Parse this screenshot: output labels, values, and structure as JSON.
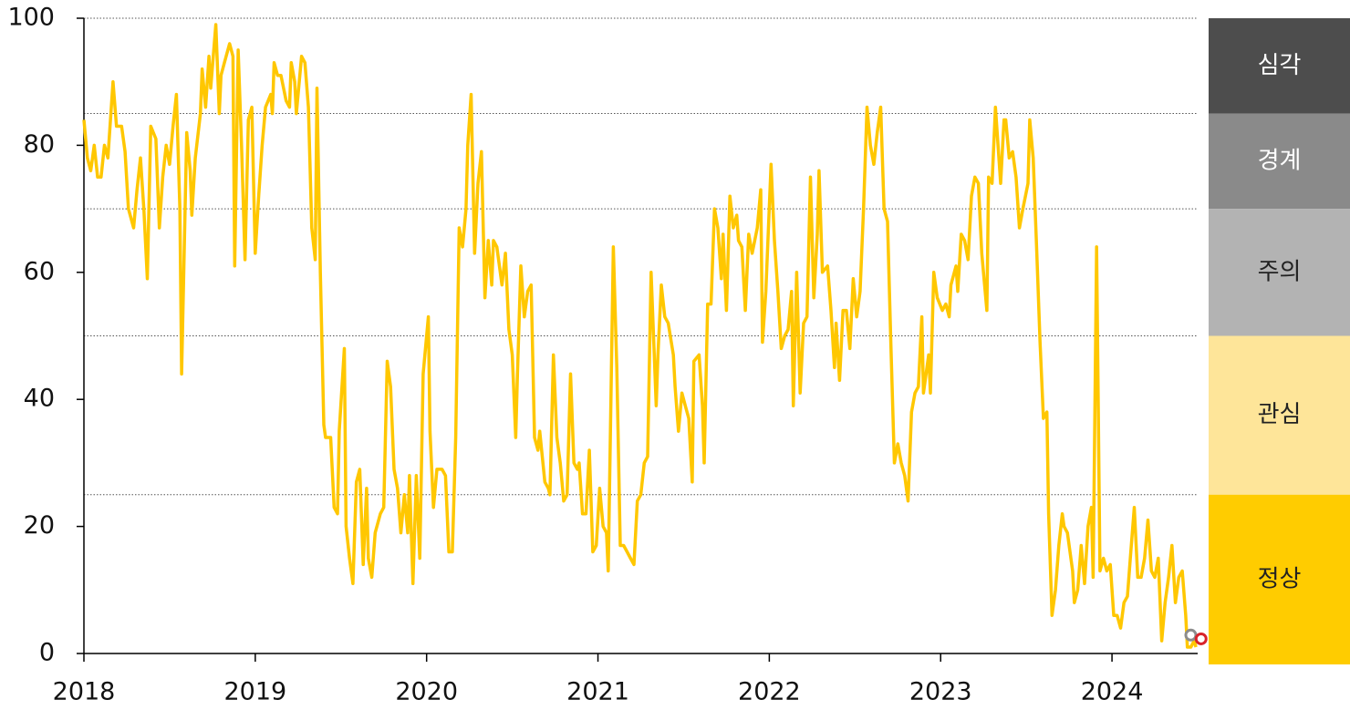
{
  "chart_data": {
    "type": "line",
    "color": "#ffc700",
    "xlim": [
      2018,
      2024.5
    ],
    "xticks": [
      2018,
      2019,
      2020,
      2021,
      2022,
      2023,
      2024
    ],
    "ylim": [
      0,
      100
    ],
    "yticks": [
      0,
      20,
      40,
      60,
      80,
      100
    ],
    "x": [
      2018,
      2018.02,
      2018.04,
      2018.06,
      2018.08,
      2018.1,
      2018.12,
      2018.14,
      2018.17,
      2018.19,
      2018.22,
      2018.24,
      2018.26,
      2018.29,
      2018.31,
      2018.33,
      2018.35,
      2018.37,
      2018.39,
      2018.42,
      2018.44,
      2018.46,
      2018.48,
      2018.5,
      2018.52,
      2018.54,
      2018.56,
      2018.57,
      2018.6,
      2018.62,
      2018.63,
      2018.65,
      2018.68,
      2018.69,
      2018.71,
      2018.73,
      2018.74,
      2018.77,
      2018.79,
      2018.8,
      2018.82,
      2018.85,
      2018.87,
      2018.88,
      2018.9,
      2018.92,
      2018.94,
      2018.96,
      2018.98,
      2019,
      2019.02,
      2019.04,
      2019.06,
      2019.09,
      2019.1,
      2019.11,
      2019.13,
      2019.15,
      2019.18,
      2019.2,
      2019.21,
      2019.23,
      2019.24,
      2019.27,
      2019.29,
      2019.31,
      2019.33,
      2019.35,
      2019.36,
      2019.38,
      2019.4,
      2019.41,
      2019.44,
      2019.46,
      2019.48,
      2019.49,
      2019.52,
      2019.53,
      2019.55,
      2019.57,
      2019.59,
      2019.61,
      2019.63,
      2019.65,
      2019.66,
      2019.68,
      2019.7,
      2019.73,
      2019.75,
      2019.77,
      2019.79,
      2019.81,
      2019.83,
      2019.85,
      2019.87,
      2019.89,
      2019.9,
      2019.92,
      2019.94,
      2019.96,
      2019.98,
      2020.01,
      2020.02,
      2020.04,
      2020.06,
      2020.09,
      2020.11,
      2020.13,
      2020.15,
      2020.17,
      2020.19,
      2020.21,
      2020.23,
      2020.24,
      2020.26,
      2020.28,
      2020.3,
      2020.32,
      2020.34,
      2020.36,
      2020.38,
      2020.39,
      2020.41,
      2020.44,
      2020.46,
      2020.48,
      2020.5,
      2020.52,
      2020.53,
      2020.55,
      2020.57,
      2020.59,
      2020.61,
      2020.63,
      2020.65,
      2020.66,
      2020.69,
      2020.71,
      2020.72,
      2020.74,
      2020.76,
      2020.78,
      2020.8,
      2020.82,
      2020.84,
      2020.86,
      2020.88,
      2020.89,
      2020.91,
      2020.93,
      2020.95,
      2020.97,
      2020.99,
      2021.01,
      2021.03,
      2021.05,
      2021.06,
      2021.09,
      2021.11,
      2021.13,
      2021.15,
      2021.17,
      2021.19,
      2021.21,
      2021.23,
      2021.25,
      2021.27,
      2021.29,
      2021.31,
      2021.34,
      2021.35,
      2021.37,
      2021.39,
      2021.41,
      2021.44,
      2021.45,
      2021.47,
      2021.49,
      2021.51,
      2021.53,
      2021.55,
      2021.56,
      2021.59,
      2021.61,
      2021.62,
      2021.64,
      2021.66,
      2021.68,
      2021.7,
      2021.72,
      2021.73,
      2021.75,
      2021.77,
      2021.79,
      2021.81,
      2021.82,
      2021.84,
      2021.86,
      2021.88,
      2021.9,
      2021.93,
      2021.95,
      2021.96,
      2021.98,
      2022.01,
      2022.03,
      2022.05,
      2022.07,
      2022.09,
      2022.11,
      2022.13,
      2022.14,
      2022.16,
      2022.18,
      2022.2,
      2022.22,
      2022.24,
      2022.26,
      2022.28,
      2022.29,
      2022.31,
      2022.34,
      2022.36,
      2022.38,
      2022.39,
      2022.41,
      2022.43,
      2022.45,
      2022.47,
      2022.49,
      2022.51,
      2022.53,
      2022.55,
      2022.57,
      2022.59,
      2022.61,
      2022.63,
      2022.65,
      2022.67,
      2022.69,
      2022.71,
      2022.73,
      2022.75,
      2022.77,
      2022.79,
      2022.81,
      2022.83,
      2022.85,
      2022.87,
      2022.89,
      2022.9,
      2022.93,
      2022.94,
      2022.96,
      2022.98,
      2023.01,
      2023.03,
      2023.05,
      2023.06,
      2023.09,
      2023.1,
      2023.12,
      2023.14,
      2023.16,
      2023.18,
      2023.2,
      2023.22,
      2023.24,
      2023.27,
      2023.28,
      2023.3,
      2023.32,
      2023.35,
      2023.37,
      2023.38,
      2023.4,
      2023.42,
      2023.44,
      2023.46,
      2023.48,
      2023.51,
      2023.52,
      2023.54,
      2023.56,
      2023.58,
      2023.6,
      2023.62,
      2023.63,
      2023.65,
      2023.67,
      2023.69,
      2023.71,
      2023.72,
      2023.74,
      2023.77,
      2023.78,
      2023.8,
      2023.82,
      2023.84,
      2023.86,
      2023.88,
      2023.89,
      2023.91,
      2023.93,
      2023.95,
      2023.97,
      2023.99,
      2024.01,
      2024.03,
      2024.05,
      2024.07,
      2024.09,
      2024.11,
      2024.13,
      2024.15,
      2024.17,
      2024.19,
      2024.21,
      2024.23,
      2024.25,
      2024.27,
      2024.29,
      2024.31,
      2024.33,
      2024.35,
      2024.37,
      2024.39,
      2024.41,
      2024.43,
      2024.44,
      2024.46,
      2024.48,
      2024.49
    ],
    "values": [
      84,
      78,
      76,
      80,
      75,
      75,
      80,
      78,
      90,
      83,
      83,
      79,
      70,
      67,
      73,
      78,
      70,
      59,
      83,
      81,
      67,
      75,
      80,
      77,
      83,
      88,
      70,
      44,
      82,
      76,
      69,
      78,
      85,
      92,
      86,
      94,
      89,
      99,
      85,
      91,
      93,
      96,
      94,
      61,
      95,
      80,
      62,
      84,
      86,
      63,
      72,
      80,
      86,
      88,
      85,
      93,
      91,
      91,
      87,
      86,
      93,
      90,
      85,
      94,
      93,
      86,
      67,
      62,
      89,
      60,
      36,
      34,
      34,
      23,
      22,
      35,
      48,
      20,
      15,
      11,
      27,
      29,
      14,
      26,
      15,
      12,
      19,
      22,
      23,
      46,
      42,
      29,
      26,
      19,
      25,
      19,
      28,
      11,
      28,
      15,
      44,
      53,
      35,
      23,
      29,
      29,
      28,
      16,
      16,
      34,
      67,
      64,
      70,
      80,
      88,
      63,
      74,
      79,
      56,
      65,
      58,
      65,
      64,
      58,
      63,
      51,
      47,
      34,
      44,
      61,
      53,
      57,
      58,
      34,
      32,
      35,
      27,
      26,
      25,
      47,
      34,
      30,
      24,
      25,
      44,
      30,
      29,
      30,
      22,
      22,
      32,
      16,
      17,
      26,
      20,
      19,
      13,
      64,
      45,
      17,
      17,
      16,
      15,
      14,
      24,
      25,
      30,
      31,
      60,
      39,
      47,
      58,
      53,
      52,
      47,
      42,
      35,
      41,
      39,
      37,
      27,
      46,
      47,
      39,
      30,
      55,
      55,
      70,
      67,
      59,
      66,
      54,
      72,
      67,
      69,
      65,
      64,
      54,
      66,
      63,
      67,
      73,
      49,
      57,
      77,
      65,
      57,
      48,
      50,
      51,
      57,
      39,
      60,
      41,
      52,
      53,
      75,
      56,
      66,
      76,
      60,
      61,
      54,
      45,
      52,
      43,
      54,
      54,
      48,
      59,
      53,
      57,
      70,
      86,
      80,
      77,
      82,
      86,
      70,
      68,
      48,
      30,
      33,
      30,
      28,
      24,
      38,
      41,
      42,
      53,
      41,
      47,
      41,
      60,
      56,
      54,
      55,
      53,
      58,
      61,
      57,
      66,
      65,
      62,
      72,
      75,
      74,
      63,
      54,
      75,
      74,
      86,
      74,
      84,
      84,
      78,
      79,
      75,
      67,
      70,
      74,
      84,
      78,
      64,
      49,
      37,
      38,
      22,
      6,
      10,
      17,
      22,
      20,
      19,
      13,
      8,
      10,
      17,
      11,
      20,
      23,
      12,
      64,
      13,
      15,
      13,
      14,
      6,
      6,
      4,
      8,
      9,
      16,
      23,
      12,
      12,
      15,
      21,
      13,
      12,
      15,
      2,
      8,
      12,
      17,
      8,
      12,
      13,
      6,
      1,
      1,
      2,
      1
    ],
    "points": [
      {
        "x": 2024.46,
        "value": 2.9,
        "color": "#8c8c8c"
      },
      {
        "x": 2024.52,
        "value": 2.3,
        "color": "#d8232a"
      }
    ],
    "bands": [
      {
        "label": "심각",
        "from": 85,
        "to": 100,
        "color": "#4d4d4d",
        "text_color": "#ffffff"
      },
      {
        "label": "경계",
        "from": 70,
        "to": 85,
        "color": "#8a8a8a",
        "text_color": "#ffffff"
      },
      {
        "label": "주의",
        "from": 50,
        "to": 70,
        "color": "#b3b3b3",
        "text_color": "#222222"
      },
      {
        "label": "관심",
        "from": 25,
        "to": 50,
        "color": "#fee599",
        "text_color": "#222222"
      },
      {
        "label": "정상",
        "from": 0,
        "to": 25,
        "color": "#ffcc00",
        "text_color": "#222222"
      }
    ]
  }
}
